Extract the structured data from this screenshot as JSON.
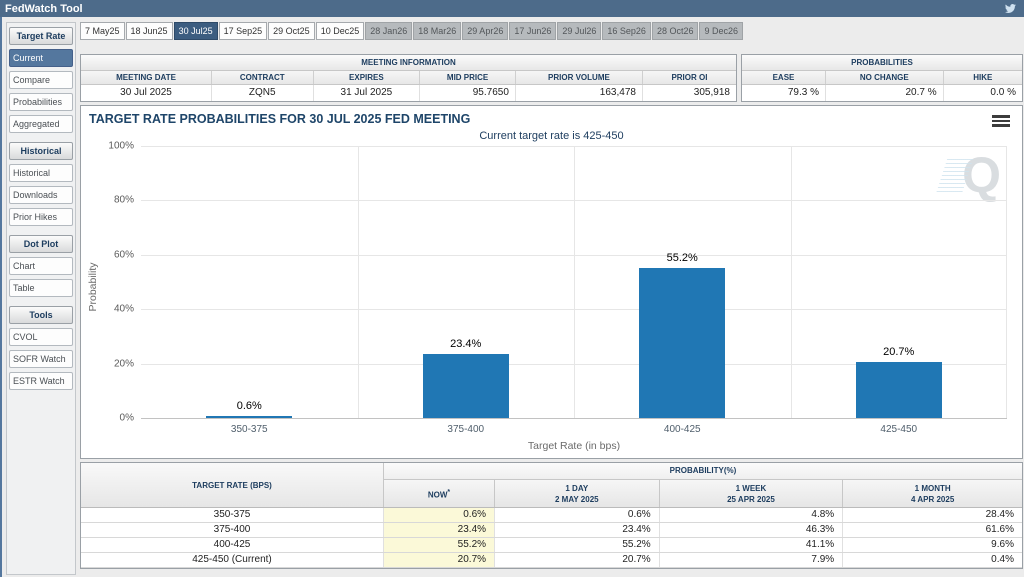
{
  "header": {
    "title": "FedWatch Tool"
  },
  "sidebar": {
    "sections": [
      {
        "label": "Target Rate",
        "items": [
          {
            "label": "Current",
            "selected": true
          },
          {
            "label": "Compare",
            "selected": false
          },
          {
            "label": "Probabilities",
            "selected": false
          },
          {
            "label": "Aggregated",
            "selected": false
          }
        ]
      },
      {
        "label": "Historical",
        "items": [
          {
            "label": "Historical",
            "selected": false
          },
          {
            "label": "Downloads",
            "selected": false
          },
          {
            "label": "Prior Hikes",
            "selected": false
          }
        ]
      },
      {
        "label": "Dot Plot",
        "items": [
          {
            "label": "Chart",
            "selected": false
          },
          {
            "label": "Table",
            "selected": false
          }
        ]
      },
      {
        "label": "Tools",
        "items": [
          {
            "label": "CVOL",
            "selected": false
          },
          {
            "label": "SOFR Watch",
            "selected": false
          },
          {
            "label": "ESTR Watch",
            "selected": false
          }
        ]
      }
    ]
  },
  "tabs": [
    {
      "label": "7 May25",
      "state": "normal"
    },
    {
      "label": "18 Jun25",
      "state": "normal"
    },
    {
      "label": "30 Jul25",
      "state": "selected"
    },
    {
      "label": "17 Sep25",
      "state": "normal"
    },
    {
      "label": "29 Oct25",
      "state": "normal"
    },
    {
      "label": "10 Dec25",
      "state": "normal"
    },
    {
      "label": "28 Jan26",
      "state": "disabled"
    },
    {
      "label": "18 Mar26",
      "state": "disabled"
    },
    {
      "label": "29 Apr26",
      "state": "disabled"
    },
    {
      "label": "17 Jun26",
      "state": "disabled"
    },
    {
      "label": "29 Jul26",
      "state": "disabled"
    },
    {
      "label": "16 Sep26",
      "state": "disabled"
    },
    {
      "label": "28 Oct26",
      "state": "disabled"
    },
    {
      "label": "9 Dec26",
      "state": "disabled"
    }
  ],
  "meeting_info": {
    "title": "MEETING INFORMATION",
    "columns": [
      "MEETING DATE",
      "CONTRACT",
      "EXPIRES",
      "MID PRICE",
      "PRIOR VOLUME",
      "PRIOR OI"
    ],
    "values": [
      "30 Jul 2025",
      "ZQN5",
      "31 Jul 2025",
      "95.7650",
      "163,478",
      "305,918"
    ]
  },
  "probabilities_summary": {
    "title": "PROBABILITIES",
    "columns": [
      "EASE",
      "NO CHANGE",
      "HIKE"
    ],
    "values": [
      "79.3 %",
      "20.7 %",
      "0.0 %"
    ]
  },
  "chart": {
    "title": "TARGET RATE PROBABILITIES FOR 30 JUL 2025 FED MEETING",
    "subtitle": "Current target rate is 425-450",
    "xlabel": "Target Rate (in bps)",
    "ylabel": "Probability",
    "watermark": "Q"
  },
  "chart_data": {
    "type": "bar",
    "categories": [
      "350-375",
      "375-400",
      "400-425",
      "425-450"
    ],
    "values": [
      0.6,
      23.4,
      55.2,
      20.7
    ],
    "value_labels": [
      "0.6%",
      "23.4%",
      "55.2%",
      "20.7%"
    ],
    "title": "TARGET RATE PROBABILITIES FOR 30 JUL 2025 FED MEETING",
    "subtitle": "Current target rate is 425-450",
    "xlabel": "Target Rate (in bps)",
    "ylabel": "Probability",
    "ylim": [
      0,
      100
    ],
    "yticks": [
      0,
      20,
      40,
      60,
      80,
      100
    ],
    "ytick_labels": [
      "0%",
      "20%",
      "40%",
      "60%",
      "80%",
      "100%"
    ],
    "grid": true,
    "bar_color": "#2077b4"
  },
  "probability_table": {
    "rate_header": "TARGET RATE (BPS)",
    "group_header": "PROBABILITY(%)",
    "columns": [
      {
        "label": "NOW",
        "sup": "*",
        "date": ""
      },
      {
        "label": "1 DAY",
        "date": "2 MAY 2025"
      },
      {
        "label": "1 WEEK",
        "date": "25 APR 2025"
      },
      {
        "label": "1 MONTH",
        "date": "4 APR 2025"
      }
    ],
    "rows": [
      {
        "rate": "350-375",
        "now": "0.6%",
        "day": "0.6%",
        "week": "4.8%",
        "month": "28.4%"
      },
      {
        "rate": "375-400",
        "now": "23.4%",
        "day": "23.4%",
        "week": "46.3%",
        "month": "61.6%"
      },
      {
        "rate": "400-425",
        "now": "55.2%",
        "day": "55.2%",
        "week": "41.1%",
        "month": "9.6%"
      },
      {
        "rate": "425-450 (Current)",
        "now": "20.7%",
        "day": "20.7%",
        "week": "7.9%",
        "month": "0.4%"
      }
    ]
  },
  "colors": {
    "topbar": "#4d6b8a",
    "selected_tab": "#3c5d80",
    "selected_sidebar": "#54779e",
    "bar": "#2077b4",
    "now_column": "#fbf9d8",
    "heading_text": "#1c3c5e"
  }
}
